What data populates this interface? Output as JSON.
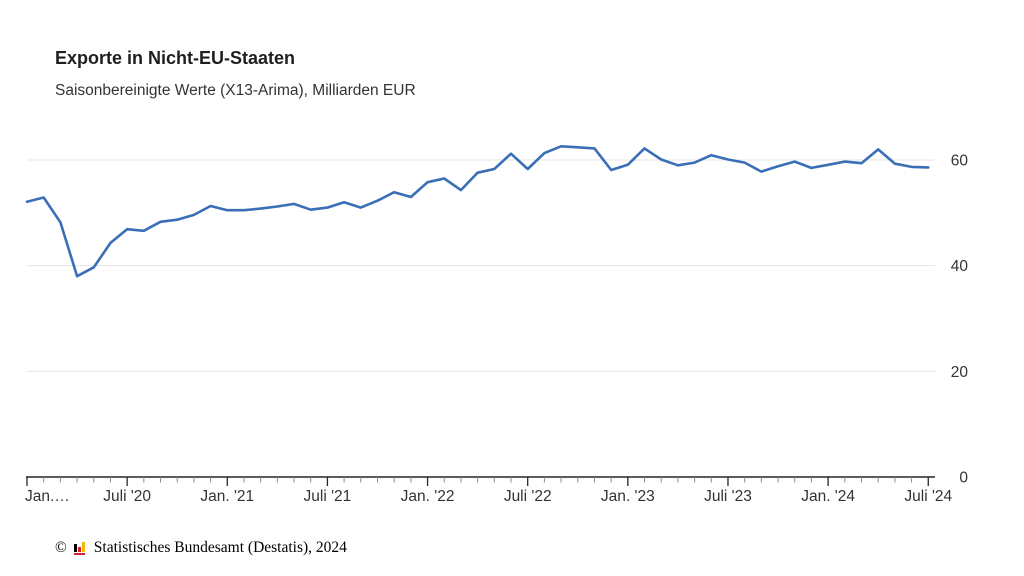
{
  "header": {
    "title": "Exporte in Nicht-EU-Staaten",
    "subtitle": "Saisonbereinigte Werte (X13-Arima), Milliarden EUR"
  },
  "chart_data": {
    "type": "line",
    "title": "Exporte in Nicht-EU-Staaten",
    "subtitle": "Saisonbereinigte Werte (X13-Arima), Milliarden EUR",
    "ylabel": "Milliarden EUR",
    "ylim": [
      0,
      64
    ],
    "yticks": [
      0,
      20,
      40,
      60
    ],
    "ytick_side": "right",
    "grid": "horizontal-only",
    "legend": "none",
    "line_color": "#3a6fb7",
    "x": [
      "2020-01",
      "2020-02",
      "2020-03",
      "2020-04",
      "2020-05",
      "2020-06",
      "2020-07",
      "2020-08",
      "2020-09",
      "2020-10",
      "2020-11",
      "2020-12",
      "2021-01",
      "2021-02",
      "2021-03",
      "2021-04",
      "2021-05",
      "2021-06",
      "2021-07",
      "2021-08",
      "2021-09",
      "2021-10",
      "2021-11",
      "2021-12",
      "2022-01",
      "2022-02",
      "2022-03",
      "2022-04",
      "2022-05",
      "2022-06",
      "2022-07",
      "2022-08",
      "2022-09",
      "2022-10",
      "2022-11",
      "2022-12",
      "2023-01",
      "2023-02",
      "2023-03",
      "2023-04",
      "2023-05",
      "2023-06",
      "2023-07",
      "2023-08",
      "2023-09",
      "2023-10",
      "2023-11",
      "2023-12",
      "2024-01",
      "2024-02",
      "2024-03",
      "2024-04",
      "2024-05",
      "2024-06",
      "2024-07"
    ],
    "values": [
      52.1,
      52.9,
      48.2,
      38.0,
      39.7,
      44.3,
      46.9,
      46.6,
      48.3,
      48.7,
      49.6,
      51.3,
      50.5,
      50.5,
      50.8,
      51.2,
      51.7,
      50.6,
      51.0,
      52.0,
      51.0,
      52.3,
      53.9,
      53.0,
      55.8,
      56.5,
      54.3,
      57.6,
      58.3,
      61.2,
      58.3,
      61.3,
      62.6,
      62.4,
      62.2,
      58.1,
      59.1,
      62.2,
      60.1,
      59.0,
      59.5,
      60.9,
      60.1,
      59.5,
      57.8,
      58.8,
      59.7,
      58.5,
      59.1,
      59.7,
      59.4,
      62.0,
      59.3,
      58.7,
      58.6
    ],
    "xticks": [
      {
        "month": "2020-01",
        "label": "Jan.…"
      },
      {
        "month": "2020-07",
        "label": "Juli '20"
      },
      {
        "month": "2021-01",
        "label": "Jan. '21"
      },
      {
        "month": "2021-07",
        "label": "Juli '21"
      },
      {
        "month": "2022-01",
        "label": "Jan. '22"
      },
      {
        "month": "2022-07",
        "label": "Juli '22"
      },
      {
        "month": "2023-01",
        "label": "Jan. '23"
      },
      {
        "month": "2023-07",
        "label": "Juli '23"
      },
      {
        "month": "2024-01",
        "label": "Jan. '24"
      },
      {
        "month": "2024-07",
        "label": "Juli '24"
      }
    ]
  },
  "footer": {
    "copyright_symbol": "©",
    "logo_icon": "destatis-bar-chart-logo",
    "logo_colors": [
      "#000000",
      "#d71f26",
      "#f6b800"
    ],
    "text": "Statistisches Bundesamt (Destatis), 2024"
  }
}
